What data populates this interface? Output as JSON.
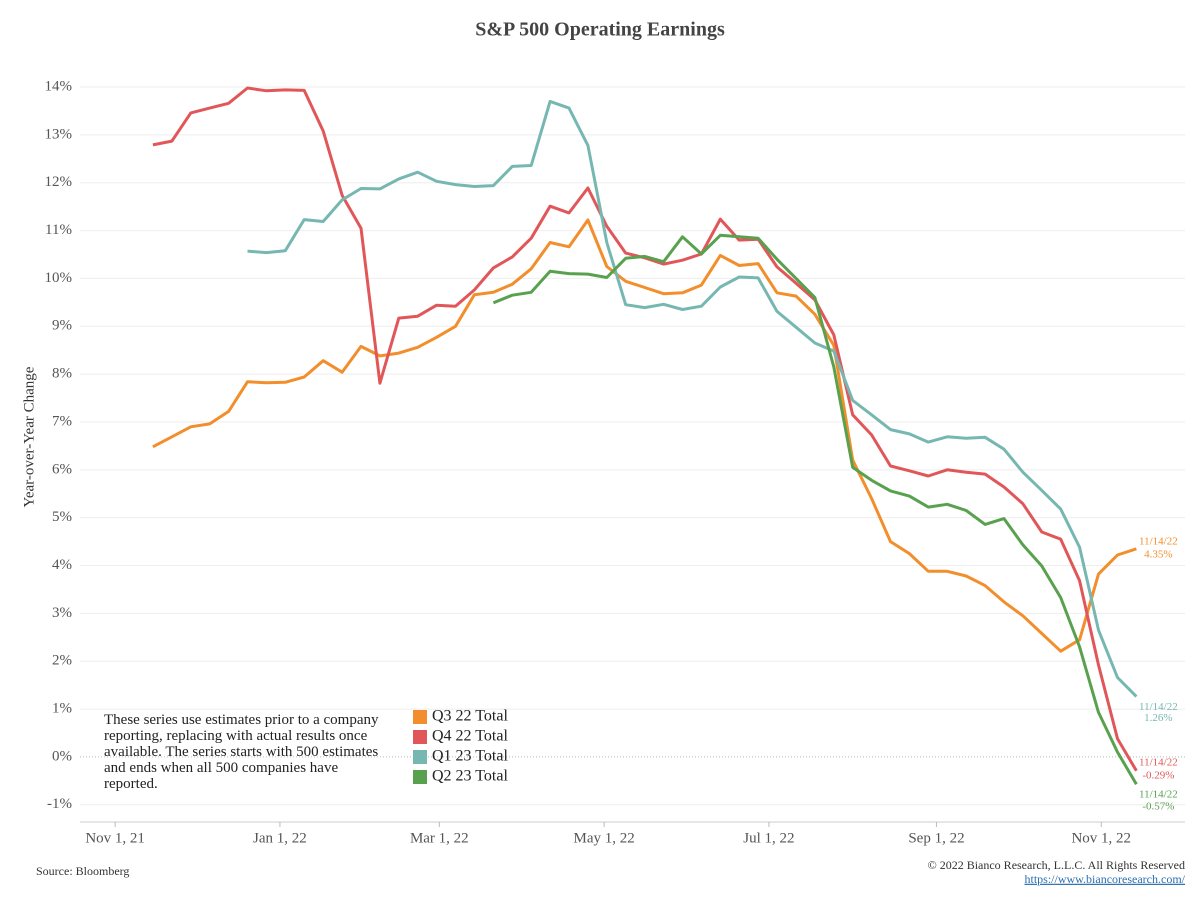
{
  "chart_data": {
    "type": "line",
    "title": "S&P 500 Operating Earnings",
    "y_label": "Year-over-Year Change",
    "note": "These series use estimates prior to a company reporting, replacing with actual results once available. The series starts with 500 estimates and ends when all 500 companies have reported.",
    "source": "Source: Bloomberg",
    "copyright": "© 2022 Bianco Research, L.L.C. All Rights Reserved",
    "url": "https://www.biancoresearch.com/",
    "x": [
      "2021-11-15",
      "2021-11-22",
      "2021-11-29",
      "2021-12-06",
      "2021-12-13",
      "2021-12-20",
      "2021-12-27",
      "2022-01-03",
      "2022-01-10",
      "2022-01-17",
      "2022-01-24",
      "2022-01-31",
      "2022-02-07",
      "2022-02-14",
      "2022-02-21",
      "2022-02-28",
      "2022-03-07",
      "2022-03-14",
      "2022-03-21",
      "2022-03-28",
      "2022-04-04",
      "2022-04-11",
      "2022-04-18",
      "2022-04-25",
      "2022-05-02",
      "2022-05-09",
      "2022-05-16",
      "2022-05-23",
      "2022-05-30",
      "2022-06-06",
      "2022-06-13",
      "2022-06-20",
      "2022-06-27",
      "2022-07-04",
      "2022-07-11",
      "2022-07-18",
      "2022-07-25",
      "2022-08-01",
      "2022-08-08",
      "2022-08-15",
      "2022-08-22",
      "2022-08-29",
      "2022-09-05",
      "2022-09-12",
      "2022-09-19",
      "2022-09-26",
      "2022-10-03",
      "2022-10-10",
      "2022-10-17",
      "2022-10-24",
      "2022-10-31",
      "2022-11-07",
      "2022-11-14"
    ],
    "xlim": [
      "2021-10-19",
      "2022-12-02"
    ],
    "xticks": [
      {
        "value": "2021-11-01",
        "label": "Nov 1, 21"
      },
      {
        "value": "2022-01-01",
        "label": "Jan 1, 22"
      },
      {
        "value": "2022-03-01",
        "label": "Mar 1, 22"
      },
      {
        "value": "2022-05-01",
        "label": "May 1, 22"
      },
      {
        "value": "2022-07-01",
        "label": "Jul 1, 22"
      },
      {
        "value": "2022-09-01",
        "label": "Sep 1, 22"
      },
      {
        "value": "2022-11-01",
        "label": "Nov 1, 22"
      }
    ],
    "ylim": [
      -1.36,
      14.46
    ],
    "yticks": [
      {
        "value": -1,
        "label": "-1%"
      },
      {
        "value": 0,
        "label": "0%"
      },
      {
        "value": 1,
        "label": "1%"
      },
      {
        "value": 2,
        "label": "2%"
      },
      {
        "value": 3,
        "label": "3%"
      },
      {
        "value": 4,
        "label": "4%"
      },
      {
        "value": 5,
        "label": "5%"
      },
      {
        "value": 6,
        "label": "6%"
      },
      {
        "value": 7,
        "label": "7%"
      },
      {
        "value": 8,
        "label": "8%"
      },
      {
        "value": 9,
        "label": "9%"
      },
      {
        "value": 10,
        "label": "10%"
      },
      {
        "value": 11,
        "label": "11%"
      },
      {
        "value": 12,
        "label": "12%"
      },
      {
        "value": 13,
        "label": "13%"
      },
      {
        "value": 14,
        "label": "14%"
      }
    ],
    "grid": true,
    "legend": "lower left",
    "series": [
      {
        "name": "Q3 22 Total",
        "color": "#f28e2b",
        "end_date_label": "11/14/22",
        "values": [
          6.48,
          6.69,
          6.9,
          6.96,
          7.22,
          7.84,
          7.82,
          7.83,
          7.94,
          8.28,
          8.04,
          8.58,
          8.38,
          8.44,
          8.56,
          8.77,
          9.0,
          9.66,
          9.71,
          9.88,
          10.2,
          10.75,
          10.66,
          11.22,
          10.25,
          9.94,
          9.81,
          9.68,
          9.7,
          9.86,
          10.48,
          10.27,
          10.31,
          9.7,
          9.63,
          9.25,
          8.6,
          6.2,
          5.4,
          4.5,
          4.25,
          3.88,
          3.88,
          3.78,
          3.58,
          3.24,
          2.95,
          2.58,
          2.21,
          2.45,
          3.82,
          4.22,
          4.35
        ],
        "value_labels": [
          null,
          null,
          null,
          null,
          null,
          null,
          null,
          null,
          null,
          null,
          null,
          null,
          null,
          null,
          null,
          null,
          null,
          null,
          null,
          null,
          null,
          null,
          null,
          null,
          null,
          null,
          null,
          null,
          null,
          null,
          null,
          null,
          null,
          null,
          null,
          null,
          null,
          null,
          null,
          null,
          null,
          null,
          null,
          null,
          null,
          null,
          null,
          null,
          null,
          null,
          null,
          null,
          "4.35%"
        ]
      },
      {
        "name": "Q4 22 Total",
        "color": "#e15759",
        "end_date_label": "11/14/22",
        "values": [
          12.79,
          12.87,
          13.46,
          13.56,
          13.66,
          13.98,
          13.92,
          13.94,
          13.93,
          13.08,
          11.74,
          11.05,
          7.81,
          9.17,
          9.21,
          9.44,
          9.42,
          9.76,
          10.22,
          10.45,
          10.84,
          11.51,
          11.37,
          11.89,
          11.09,
          10.53,
          10.43,
          10.3,
          10.38,
          10.51,
          11.24,
          10.8,
          10.82,
          10.24,
          9.9,
          9.55,
          8.82,
          7.15,
          6.73,
          6.08,
          5.98,
          5.87,
          6.0,
          5.95,
          5.91,
          5.64,
          5.29,
          4.7,
          4.55,
          3.68,
          1.92,
          0.38,
          -0.29
        ],
        "value_labels": [
          null,
          null,
          null,
          null,
          null,
          null,
          null,
          null,
          null,
          null,
          null,
          null,
          null,
          null,
          null,
          null,
          null,
          null,
          null,
          null,
          null,
          null,
          null,
          null,
          null,
          null,
          null,
          null,
          null,
          null,
          null,
          null,
          null,
          null,
          null,
          null,
          null,
          null,
          null,
          null,
          null,
          null,
          null,
          null,
          null,
          null,
          null,
          null,
          null,
          null,
          null,
          null,
          "-0.29%"
        ]
      },
      {
        "name": "Q1 23 Total",
        "color": "#76b7b2",
        "end_date_label": "11/14/22",
        "values": [
          null,
          null,
          null,
          null,
          null,
          10.57,
          10.54,
          10.58,
          11.23,
          11.19,
          11.64,
          11.88,
          11.87,
          12.08,
          12.22,
          12.03,
          11.96,
          11.92,
          11.94,
          12.34,
          12.36,
          13.7,
          13.56,
          12.78,
          10.75,
          9.45,
          9.39,
          9.46,
          9.35,
          9.42,
          9.82,
          10.03,
          10.01,
          9.31,
          8.98,
          8.65,
          8.48,
          7.45,
          7.15,
          6.84,
          6.75,
          6.58,
          6.69,
          6.66,
          6.68,
          6.43,
          5.95,
          5.57,
          5.18,
          4.38,
          2.65,
          1.66,
          1.26
        ],
        "value_labels": [
          null,
          null,
          null,
          null,
          null,
          null,
          null,
          null,
          null,
          null,
          null,
          null,
          null,
          null,
          null,
          null,
          null,
          null,
          null,
          null,
          null,
          null,
          null,
          null,
          null,
          null,
          null,
          null,
          null,
          null,
          null,
          null,
          null,
          null,
          null,
          null,
          null,
          null,
          null,
          null,
          null,
          null,
          null,
          null,
          null,
          null,
          null,
          null,
          null,
          null,
          null,
          null,
          "1.26%"
        ]
      },
      {
        "name": "Q2 23 Total",
        "color": "#59a14f",
        "end_date_label": "11/14/22",
        "values": [
          null,
          null,
          null,
          null,
          null,
          null,
          null,
          null,
          null,
          null,
          null,
          null,
          null,
          null,
          null,
          null,
          null,
          null,
          9.49,
          9.65,
          9.71,
          10.15,
          10.1,
          10.09,
          10.02,
          10.42,
          10.46,
          10.35,
          10.87,
          10.51,
          10.9,
          10.87,
          10.84,
          10.4,
          10.0,
          9.6,
          8.15,
          6.05,
          5.78,
          5.56,
          5.45,
          5.22,
          5.28,
          5.15,
          4.86,
          4.98,
          4.43,
          3.99,
          3.33,
          2.3,
          0.93,
          0.1,
          -0.57
        ],
        "value_labels": [
          null,
          null,
          null,
          null,
          null,
          null,
          null,
          null,
          null,
          null,
          null,
          null,
          null,
          null,
          null,
          null,
          null,
          null,
          null,
          null,
          null,
          null,
          null,
          null,
          null,
          null,
          null,
          null,
          null,
          null,
          null,
          null,
          null,
          null,
          null,
          null,
          null,
          null,
          null,
          null,
          null,
          null,
          null,
          null,
          null,
          null,
          null,
          null,
          null,
          null,
          null,
          null,
          "-0.57%"
        ]
      }
    ]
  }
}
